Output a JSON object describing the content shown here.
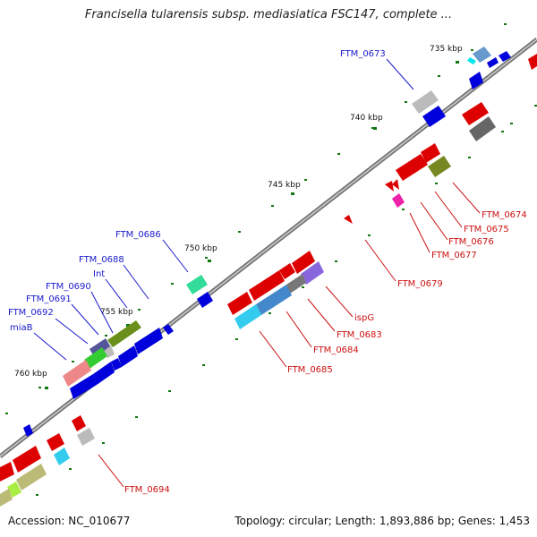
{
  "title": "Francisella tularensis subsp. mediasiatica FSC147, complete ...",
  "footer": {
    "accession": "Accession: NC_010677",
    "summary": "Topology: circular; Length: 1,893,886 bp; Genes: 1,453"
  },
  "ticks": [
    {
      "label": "735 kbp"
    },
    {
      "label": "740 kbp"
    },
    {
      "label": "745 kbp"
    },
    {
      "label": "750 kbp"
    },
    {
      "label": "755 kbp"
    },
    {
      "label": "760 kbp"
    }
  ],
  "gene_labels_outer": [
    "FTM_0673",
    "FTM_0686",
    "FTM_0688",
    "Int",
    "FTM_0690",
    "FTM_0691",
    "FTM_0692",
    "miaB"
  ],
  "gene_labels_inner": [
    "FTM_0674",
    "FTM_0675",
    "FTM_0676",
    "FTM_0677",
    "FTM_0679",
    "ispG",
    "FTM_0683",
    "FTM_0684",
    "FTM_0685",
    "FTM_0694"
  ],
  "colors": {
    "outer_label": "#1a1acc",
    "inner_label": "#cc1111",
    "backbone": "#888888",
    "tick": "#117711"
  }
}
